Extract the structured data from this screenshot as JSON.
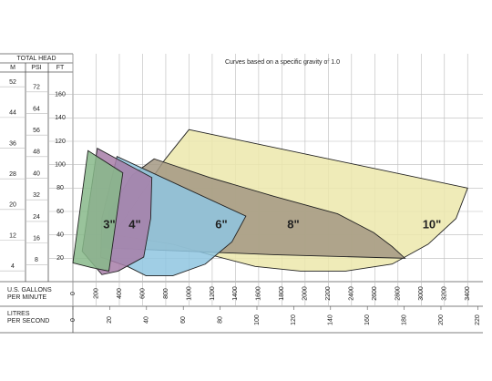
{
  "chart_data": {
    "type": "region",
    "title": "Curves based on a specific gravity of 1.0",
    "y_group_label": "TOTAL HEAD",
    "ylabel": "FT",
    "y2label": "PSI",
    "y3label": "M",
    "xlabel": [
      "U.S. GALLONS",
      "PER MINUTE"
    ],
    "x2label": [
      "LITRES",
      "PER SECOND"
    ],
    "xlim": [
      0,
      3500
    ],
    "xticks": [
      0,
      200,
      400,
      600,
      800,
      1000,
      1200,
      1400,
      1600,
      1800,
      2000,
      2200,
      2400,
      2600,
      2800,
      3000,
      3200,
      3400
    ],
    "x2lim": [
      0,
      220.8
    ],
    "x2ticks": [
      0,
      20,
      40,
      60,
      80,
      100,
      120,
      140,
      160,
      180,
      200,
      220
    ],
    "ylim": [
      0,
      180
    ],
    "yticks": [
      20,
      40,
      60,
      80,
      100,
      120,
      140,
      160
    ],
    "y2lim": [
      0,
      78
    ],
    "y2ticks": [
      8,
      16,
      24,
      32,
      40,
      48,
      56,
      64,
      72
    ],
    "y3lim": [
      0,
      54.9
    ],
    "y3ticks": [
      4,
      12,
      20,
      28,
      36,
      44,
      52
    ],
    "grid": true,
    "series": [
      {
        "name": "10\"",
        "color": "#ece8ac",
        "x": [
          1000,
          3400,
          3300,
          3060,
          2750,
          2350,
          1960,
          1570,
          1180,
          860,
          550,
          350,
          550,
          790
        ],
        "values": [
          130,
          80,
          54,
          32,
          15,
          9,
          9,
          13,
          23,
          32,
          37,
          40,
          69,
          104
        ]
      },
      {
        "name": "8\"",
        "color": "#a39882",
        "x": [
          700,
          1180,
          1730,
          2280,
          2590,
          2750,
          2860,
          1730,
          240,
          310,
          510
        ],
        "values": [
          105,
          89,
          73,
          58,
          42,
          30,
          20,
          23,
          29,
          60,
          91
        ]
      },
      {
        "name": "6\"",
        "color": "#8fc6e0",
        "x": [
          380,
          1490,
          1370,
          1140,
          860,
          630,
          470,
          240,
          250
        ],
        "values": [
          107,
          56,
          34,
          15,
          5,
          5,
          13,
          21,
          54
        ]
      },
      {
        "name": "4\"",
        "color": "#a77ea8",
        "x": [
          210,
          680,
          670,
          610,
          390,
          250,
          80
        ],
        "values": [
          114,
          89,
          54,
          21,
          9,
          6,
          26
        ]
      },
      {
        "name": "3\"",
        "color": "#87b98a",
        "x": [
          130,
          430,
          310,
          160,
          0
        ],
        "values": [
          112,
          93,
          9,
          12,
          16
        ]
      }
    ]
  }
}
